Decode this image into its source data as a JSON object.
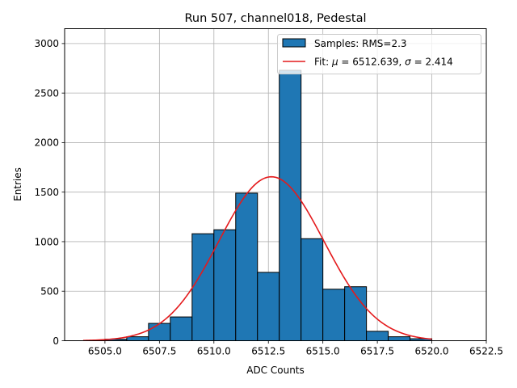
{
  "chart_data": {
    "type": "bar",
    "title": "Run 507, channel018, Pedestal",
    "xlabel": "ADC Counts",
    "ylabel": "Entries",
    "xlim": [
      6503.15,
      6522.5
    ],
    "ylim": [
      0,
      3150
    ],
    "grid": true,
    "legend_position": "top-right",
    "x_ticks": [
      {
        "value": 6505.0,
        "label": "6505.0"
      },
      {
        "value": 6507.5,
        "label": "6507.5"
      },
      {
        "value": 6510.0,
        "label": "6510.0"
      },
      {
        "value": 6512.5,
        "label": "6512.5"
      },
      {
        "value": 6515.0,
        "label": "6515.0"
      },
      {
        "value": 6517.5,
        "label": "6517.5"
      },
      {
        "value": 6520.0,
        "label": "6520.0"
      },
      {
        "value": 6522.5,
        "label": "6522.5"
      }
    ],
    "y_ticks": [
      {
        "value": 0,
        "label": "0"
      },
      {
        "value": 500,
        "label": "500"
      },
      {
        "value": 1000,
        "label": "1000"
      },
      {
        "value": 1500,
        "label": "1500"
      },
      {
        "value": 2000,
        "label": "2000"
      },
      {
        "value": 2500,
        "label": "2500"
      },
      {
        "value": 3000,
        "label": "3000"
      }
    ],
    "histogram": {
      "name": "Samples: RMS=2.3",
      "color": "#1f77b4",
      "edge_color": "#000000",
      "bins": [
        {
          "x0": 6505.0,
          "x1": 6506.0,
          "count": 15
        },
        {
          "x0": 6506.0,
          "x1": 6507.0,
          "count": 40
        },
        {
          "x0": 6507.0,
          "x1": 6508.0,
          "count": 175
        },
        {
          "x0": 6508.0,
          "x1": 6509.0,
          "count": 240
        },
        {
          "x0": 6509.0,
          "x1": 6510.0,
          "count": 1080
        },
        {
          "x0": 6510.0,
          "x1": 6511.0,
          "count": 1120
        },
        {
          "x0": 6511.0,
          "x1": 6512.0,
          "count": 1490
        },
        {
          "x0": 6512.0,
          "x1": 6513.0,
          "count": 690
        },
        {
          "x0": 6513.0,
          "x1": 6514.0,
          "count": 2730
        },
        {
          "x0": 6514.0,
          "x1": 6515.0,
          "count": 1030
        },
        {
          "x0": 6515.0,
          "x1": 6516.0,
          "count": 520
        },
        {
          "x0": 6516.0,
          "x1": 6517.0,
          "count": 545
        },
        {
          "x0": 6517.0,
          "x1": 6518.0,
          "count": 95
        },
        {
          "x0": 6518.0,
          "x1": 6519.0,
          "count": 40
        },
        {
          "x0": 6519.0,
          "x1": 6520.0,
          "count": 20
        }
      ]
    },
    "fit": {
      "name": "Fit: μ = 6512.639, σ = 2.414",
      "color": "#e41a1c",
      "mu": 6512.639,
      "sigma": 2.414,
      "peak": 1655,
      "x_range": [
        6504.0,
        6520.0
      ]
    },
    "legend": [
      {
        "label": "Samples: RMS=2.3",
        "kind": "patch"
      },
      {
        "label_prefix": "Fit: ",
        "mu_symbol": "μ",
        "mu_text": " = 6512.639, ",
        "sigma_symbol": "σ",
        "sigma_text": " = 2.414",
        "kind": "line"
      }
    ]
  }
}
